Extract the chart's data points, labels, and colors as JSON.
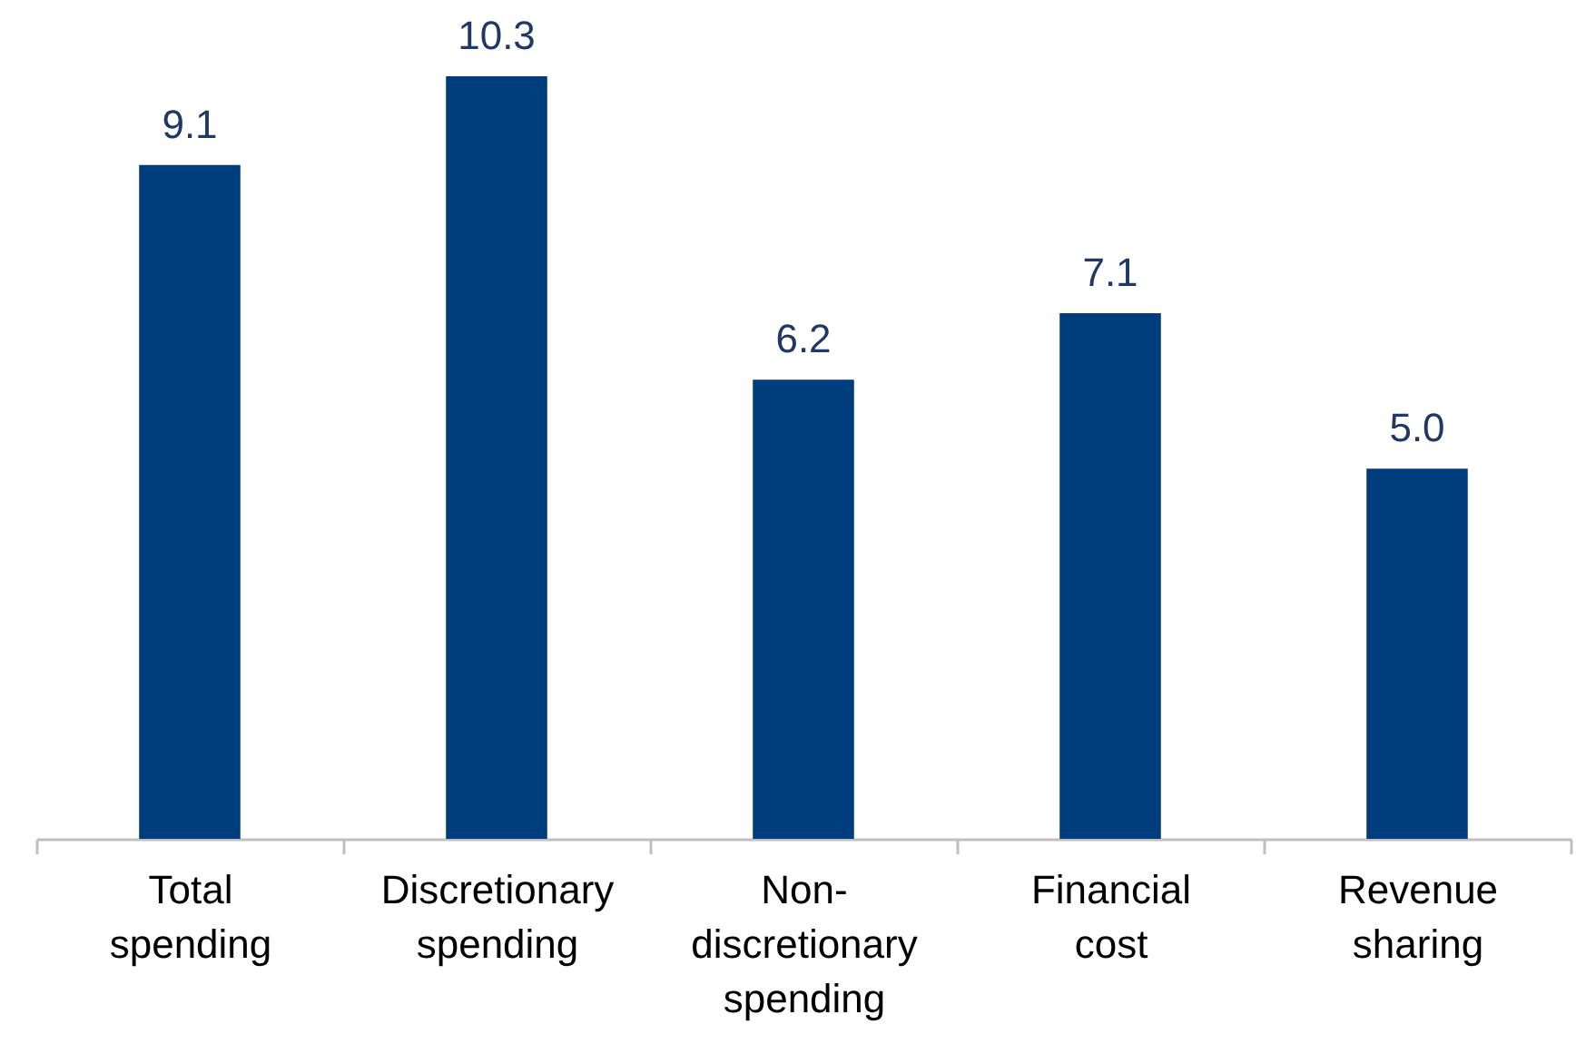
{
  "chart_data": {
    "type": "bar",
    "categories": [
      "Total spending",
      "Discretionary spending",
      "Non-discretionary spending",
      "Financial cost",
      "Revenue sharing"
    ],
    "values": [
      9.1,
      10.3,
      6.2,
      7.1,
      5.0
    ],
    "value_labels": [
      "9.1",
      "10.3",
      "6.2",
      "7.1",
      "5.0"
    ],
    "color": "#003d7c"
  }
}
